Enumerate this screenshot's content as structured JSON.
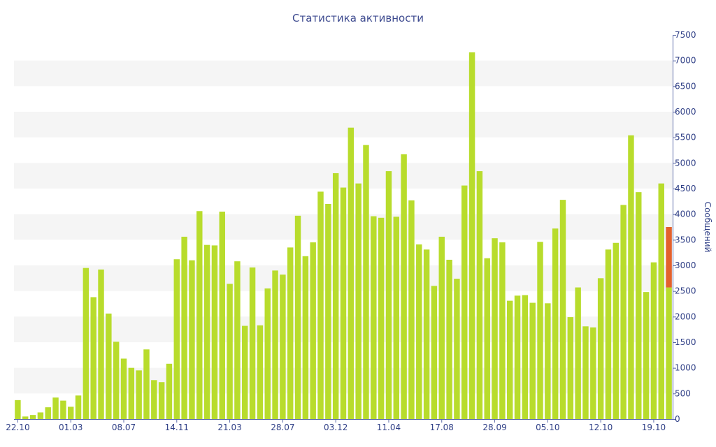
{
  "chart_data": {
    "type": "bar",
    "title": "Статистика активности",
    "xlabel": "",
    "ylabel": "Сообщений",
    "ylim": [
      0,
      7500
    ],
    "yticks": [
      0,
      500,
      1000,
      1500,
      2000,
      2500,
      3000,
      3500,
      4000,
      4500,
      5000,
      5500,
      6000,
      6500,
      7000,
      7500
    ],
    "x_tick_labels": [
      "22.10",
      "01.03",
      "08.07",
      "14.11",
      "21.03",
      "28.07",
      "03.12",
      "11.04",
      "17.08",
      "28.09",
      "05.10",
      "12.10",
      "19.10"
    ],
    "x_tick_positions": [
      0,
      7,
      14,
      21,
      28,
      35,
      42,
      49,
      56,
      63,
      70,
      77,
      84
    ],
    "grid": "horizontal bands",
    "legend": "none",
    "colors": {
      "bar": "#b8dc2c",
      "highlight": "#e3612d",
      "band": "#f5f5f5",
      "axis_text": "#2f3f86",
      "title": "#3d4a8f"
    },
    "values": [
      370,
      50,
      80,
      130,
      230,
      420,
      360,
      240,
      460,
      2950,
      2380,
      2920,
      2060,
      1510,
      1180,
      1000,
      950,
      1360,
      760,
      720,
      1080,
      3120,
      3560,
      3100,
      4060,
      3400,
      3390,
      4050,
      2640,
      3080,
      1820,
      2960,
      1830,
      2550,
      2900,
      2820,
      3350,
      3970,
      3180,
      3450,
      4440,
      4200,
      4800,
      4520,
      5690,
      4600,
      5350,
      3960,
      3930,
      4840,
      3950,
      5170,
      4270,
      3410,
      3310,
      2600,
      3560,
      3110,
      2740,
      4560,
      7160,
      4840,
      3140,
      3530,
      3450,
      2310,
      2410,
      2420,
      2270,
      3460,
      2260,
      3720,
      4280,
      1990,
      2570,
      1810,
      1790,
      2750,
      3310,
      3440,
      4180,
      5540,
      4430,
      2480,
      3060,
      4600,
      2570
    ],
    "highlight": {
      "index": 86,
      "base": 2570,
      "top": 3750
    }
  }
}
